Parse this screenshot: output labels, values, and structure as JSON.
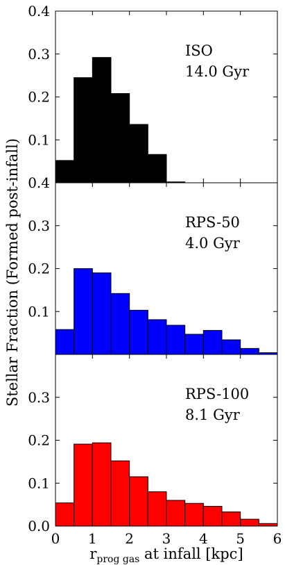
{
  "colors": {
    "iso": "#000000",
    "rps50": "#0000ff",
    "rps100": "#ff0000",
    "edge": "#000000"
  },
  "chart_data": {
    "type": "bar",
    "xlabel_main": "r",
    "xlabel_sub": "prog gas",
    "xlabel_rest": " at infall [kpc]",
    "ylabel": "Stellar Fraction (Formed post-infall)",
    "xlim": [
      0,
      6
    ],
    "ylim": [
      0,
      0.4
    ],
    "bin_width": 0.5,
    "x_ticks": [
      "0",
      "1",
      "2",
      "3",
      "4",
      "5",
      "6"
    ],
    "panels": [
      {
        "id": "iso",
        "label_line1": "ISO",
        "label_line2": "14.0 Gyr",
        "color": "#000000",
        "y_ticks": [
          "0.1",
          "0.2",
          "0.3",
          "0.4"
        ],
        "bin_starts": [
          0,
          0.5,
          1,
          1.5,
          2,
          2.5,
          3,
          3.5,
          4,
          4.5,
          5,
          5.5
        ],
        "values": [
          0.052,
          0.245,
          0.292,
          0.208,
          0.136,
          0.066,
          0.002,
          0,
          0,
          0,
          0,
          0
        ]
      },
      {
        "id": "rps50",
        "label_line1": "RPS-50",
        "label_line2": "4.0 Gyr",
        "color": "#0000ff",
        "y_ticks": [
          "0.1",
          "0.2",
          "0.3",
          "0.4"
        ],
        "bin_starts": [
          0,
          0.5,
          1,
          1.5,
          2,
          2.5,
          3,
          3.5,
          4,
          4.5,
          5,
          5.5
        ],
        "values": [
          0.058,
          0.2,
          0.19,
          0.142,
          0.103,
          0.081,
          0.068,
          0.047,
          0.056,
          0.034,
          0.014,
          0.004
        ]
      },
      {
        "id": "rps100",
        "label_line1": "RPS-100",
        "label_line2": "8.1 Gyr",
        "color": "#ff0000",
        "y_ticks": [
          "0.0",
          "0.1",
          "0.2",
          "0.3"
        ],
        "bin_starts": [
          0,
          0.5,
          1,
          1.5,
          2,
          2.5,
          3,
          3.5,
          4,
          4.5,
          5,
          5.5
        ],
        "values": [
          0.054,
          0.191,
          0.194,
          0.152,
          0.115,
          0.08,
          0.06,
          0.053,
          0.046,
          0.033,
          0.016,
          0.006
        ]
      }
    ]
  }
}
